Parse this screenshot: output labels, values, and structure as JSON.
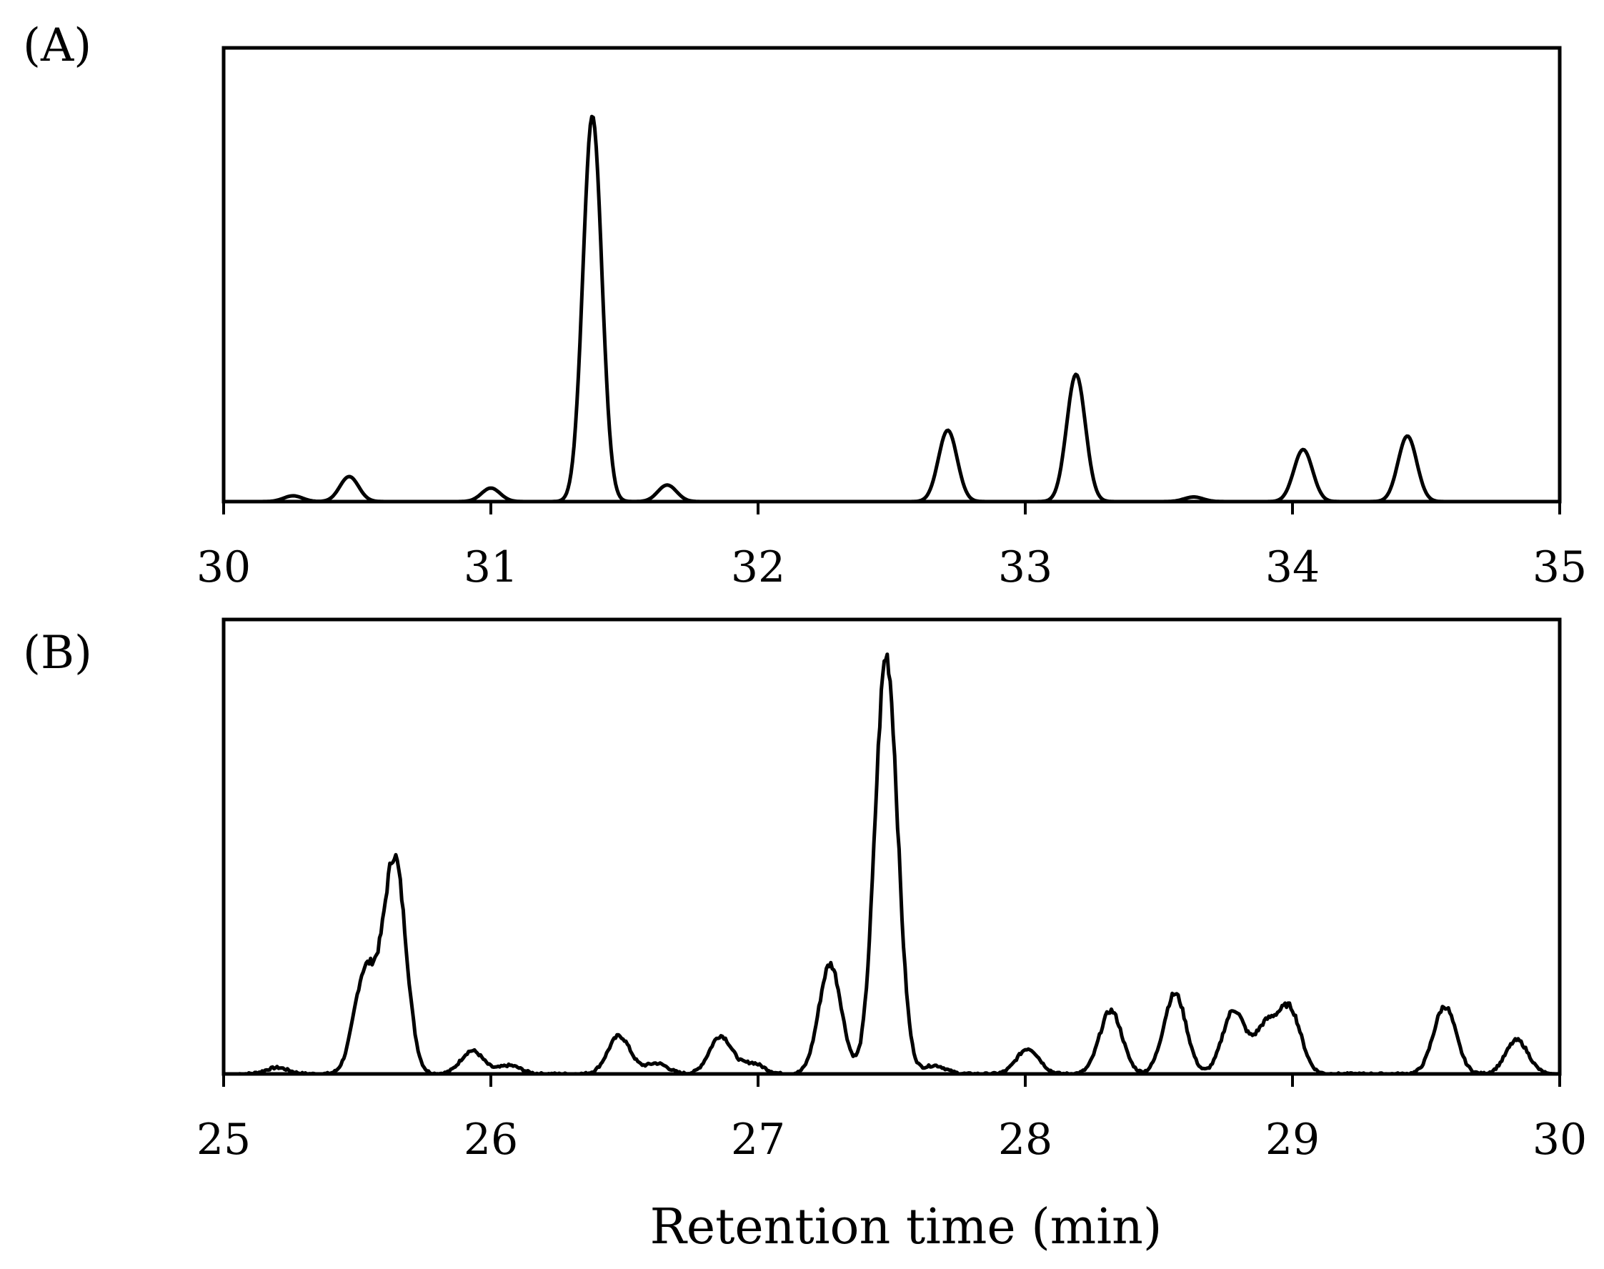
{
  "chart_data": [
    {
      "type": "line",
      "panel_label": "(A)",
      "title": "",
      "xlabel": "",
      "ylabel": "",
      "xlim": [
        30,
        35
      ],
      "ylim": [
        0,
        100
      ],
      "x_ticks": [
        "30",
        "31",
        "32",
        "33",
        "34",
        "35"
      ],
      "grid": false,
      "legend": "none",
      "series": [
        {
          "peaks": [
            {
              "x": 30.26,
              "y": 1.5
            },
            {
              "x": 30.47,
              "y": 6.5
            },
            {
              "x": 31.0,
              "y": 3.5
            },
            {
              "x": 31.38,
              "y": 100
            },
            {
              "x": 31.66,
              "y": 4.3
            },
            {
              "x": 32.71,
              "y": 18.5
            },
            {
              "x": 33.19,
              "y": 33
            },
            {
              "x": 33.63,
              "y": 1.2
            },
            {
              "x": 34.04,
              "y": 13.5
            },
            {
              "x": 34.43,
              "y": 17
            }
          ]
        }
      ]
    },
    {
      "type": "line",
      "panel_label": "(B)",
      "title": "",
      "xlabel": "Retention time (min)",
      "ylabel": "",
      "xlim": [
        25,
        30
      ],
      "ylim": [
        0,
        100
      ],
      "x_ticks": [
        "25",
        "26",
        "27",
        "28",
        "29",
        "30"
      ],
      "grid": false,
      "legend": "none",
      "series": [
        {
          "peaks": [
            {
              "x": 25.2,
              "y": 1.5
            },
            {
              "x": 25.53,
              "y": 24
            },
            {
              "x": 25.64,
              "y": 51
            },
            {
              "x": 25.93,
              "y": 5.5
            },
            {
              "x": 26.07,
              "y": 2
            },
            {
              "x": 26.48,
              "y": 9
            },
            {
              "x": 26.62,
              "y": 2.5
            },
            {
              "x": 26.86,
              "y": 9
            },
            {
              "x": 26.98,
              "y": 2.5
            },
            {
              "x": 27.27,
              "y": 26
            },
            {
              "x": 27.48,
              "y": 99
            },
            {
              "x": 27.66,
              "y": 2
            },
            {
              "x": 28.01,
              "y": 6
            },
            {
              "x": 28.32,
              "y": 15
            },
            {
              "x": 28.56,
              "y": 19
            },
            {
              "x": 28.78,
              "y": 15
            },
            {
              "x": 28.9,
              "y": 11
            },
            {
              "x": 28.99,
              "y": 15
            },
            {
              "x": 29.57,
              "y": 16
            },
            {
              "x": 29.84,
              "y": 8
            }
          ]
        }
      ]
    }
  ]
}
